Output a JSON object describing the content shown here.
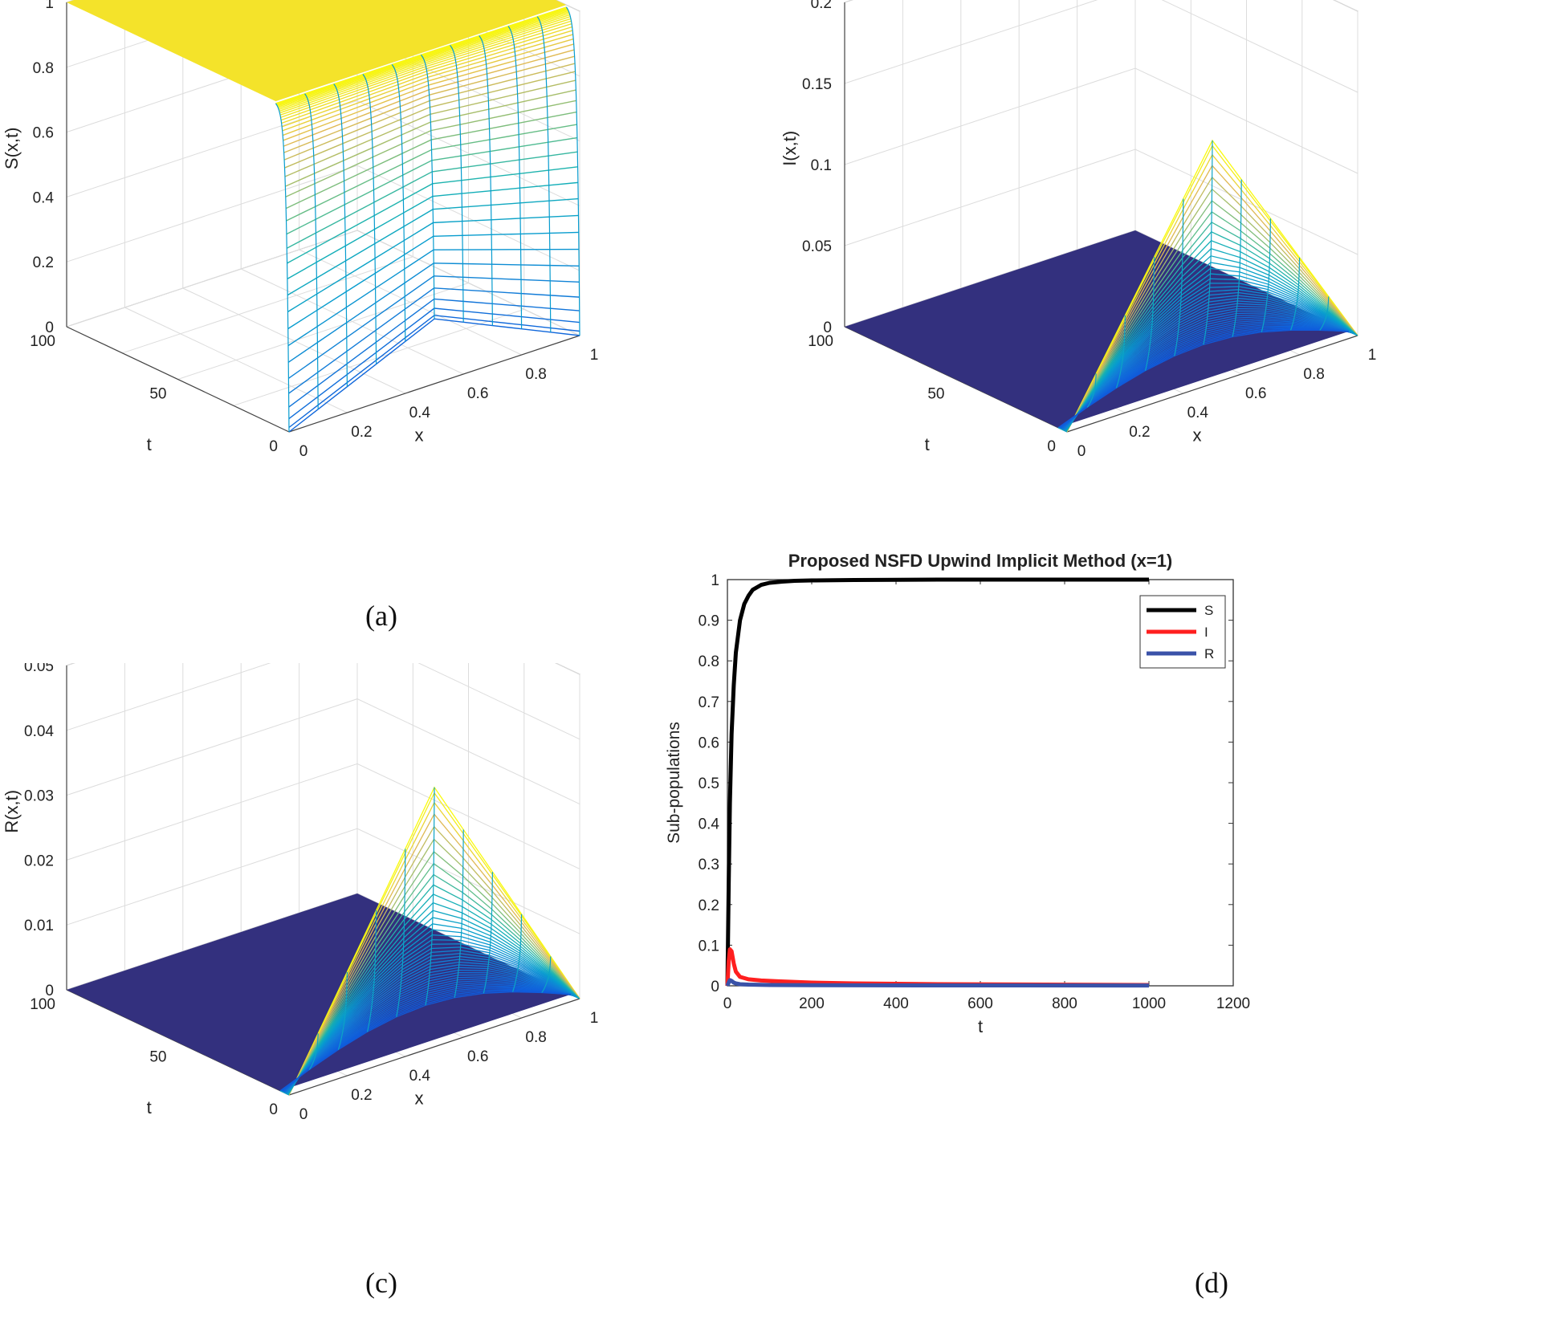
{
  "chart_data": [
    {
      "type": "surface",
      "panel": "a",
      "caption": "(a)",
      "title": "Proposed NSFD Upwind Implicit Method",
      "xlabel": "x",
      "ylabel": "t",
      "zlabel": "S(x,t)",
      "xlim": [
        0,
        1
      ],
      "ylim": [
        0,
        100
      ],
      "zlim": [
        0,
        1
      ],
      "xticks": [
        "0",
        "0.2",
        "0.4",
        "0.6",
        "0.8",
        "1"
      ],
      "yticks": [
        "0",
        "50",
        "100"
      ],
      "zticks": [
        "0",
        "0.2",
        "0.4",
        "0.6",
        "0.8",
        "1"
      ],
      "description_of_values": {
        "S_initial_min": 0.0,
        "S_initial_peak_x": 0.5,
        "S_initial_peak_value": 0.2,
        "S_long_time": 1.0
      },
      "colormap": "parula"
    },
    {
      "type": "surface",
      "panel": "b",
      "caption": "(b)",
      "title": "Proposed NSFD Upwind Implicit Method",
      "xlabel": "x",
      "ylabel": "t",
      "zlabel": "I(x,t)",
      "xlim": [
        0,
        1
      ],
      "ylim": [
        0,
        100
      ],
      "zlim": [
        0,
        0.2
      ],
      "xticks": [
        "0",
        "0.2",
        "0.4",
        "0.6",
        "0.8",
        "1"
      ],
      "yticks": [
        "0",
        "50",
        "100"
      ],
      "zticks": [
        "0",
        "0.05",
        "0.1",
        "0.15",
        "0.2"
      ],
      "initial_profile_x": [
        0,
        0.5,
        1
      ],
      "initial_profile_value": [
        0,
        0.15,
        0
      ],
      "colormap": "parula"
    },
    {
      "type": "surface",
      "panel": "c",
      "caption": "(c)",
      "title": "Proposed NSFD Upwind Implicit Method",
      "xlabel": "x",
      "ylabel": "t",
      "zlabel": "R(x,t)",
      "xlim": [
        0,
        1
      ],
      "ylim": [
        0,
        100
      ],
      "zlim": [
        0,
        0.05
      ],
      "xticks": [
        "0",
        "0.2",
        "0.4",
        "0.6",
        "0.8",
        "1"
      ],
      "yticks": [
        "0",
        "50",
        "100"
      ],
      "zticks": [
        "0",
        "0.01",
        "0.02",
        "0.03",
        "0.04",
        "0.05"
      ],
      "initial_profile_x": [
        0,
        0.5,
        1
      ],
      "initial_profile_value": [
        0,
        0.04,
        0
      ],
      "colormap": "parula"
    },
    {
      "type": "line",
      "panel": "d",
      "caption": "(d)",
      "title": "Proposed NSFD Upwind Implicit Method (x=1)",
      "xlabel": "t",
      "ylabel": "Sub-populations",
      "xlim": [
        0,
        1200
      ],
      "ylim": [
        0,
        1
      ],
      "xticks": [
        "0",
        "200",
        "400",
        "600",
        "800",
        "1000",
        "1200"
      ],
      "yticks": [
        "0",
        "0.1",
        "0.2",
        "0.3",
        "0.4",
        "0.5",
        "0.6",
        "0.7",
        "0.8",
        "0.9",
        "1"
      ],
      "legend_position": "top-right",
      "series": [
        {
          "name": "S",
          "color": "#000000",
          "x": [
            0,
            3,
            6,
            10,
            15,
            20,
            30,
            40,
            50,
            60,
            80,
            100,
            130,
            160,
            200,
            300,
            500,
            1000
          ],
          "y": [
            0,
            0.25,
            0.45,
            0.62,
            0.74,
            0.82,
            0.9,
            0.94,
            0.96,
            0.975,
            0.987,
            0.992,
            0.995,
            0.997,
            0.998,
            0.999,
            1.0,
            1.0
          ]
        },
        {
          "name": "I",
          "color": "#ff1f1f",
          "x": [
            0,
            3,
            6,
            10,
            15,
            20,
            30,
            50,
            80,
            120,
            200,
            300,
            500,
            1000
          ],
          "y": [
            0,
            0.06,
            0.09,
            0.085,
            0.055,
            0.035,
            0.022,
            0.016,
            0.013,
            0.011,
            0.008,
            0.006,
            0.004,
            0.002
          ]
        },
        {
          "name": "R",
          "color": "#3a52a8",
          "x": [
            0,
            3,
            6,
            10,
            15,
            20,
            30,
            50,
            100,
            200,
            500,
            1000
          ],
          "y": [
            0,
            0.008,
            0.014,
            0.012,
            0.008,
            0.006,
            0.004,
            0.003,
            0.002,
            0.0015,
            0.001,
            0.0008
          ]
        }
      ]
    }
  ]
}
